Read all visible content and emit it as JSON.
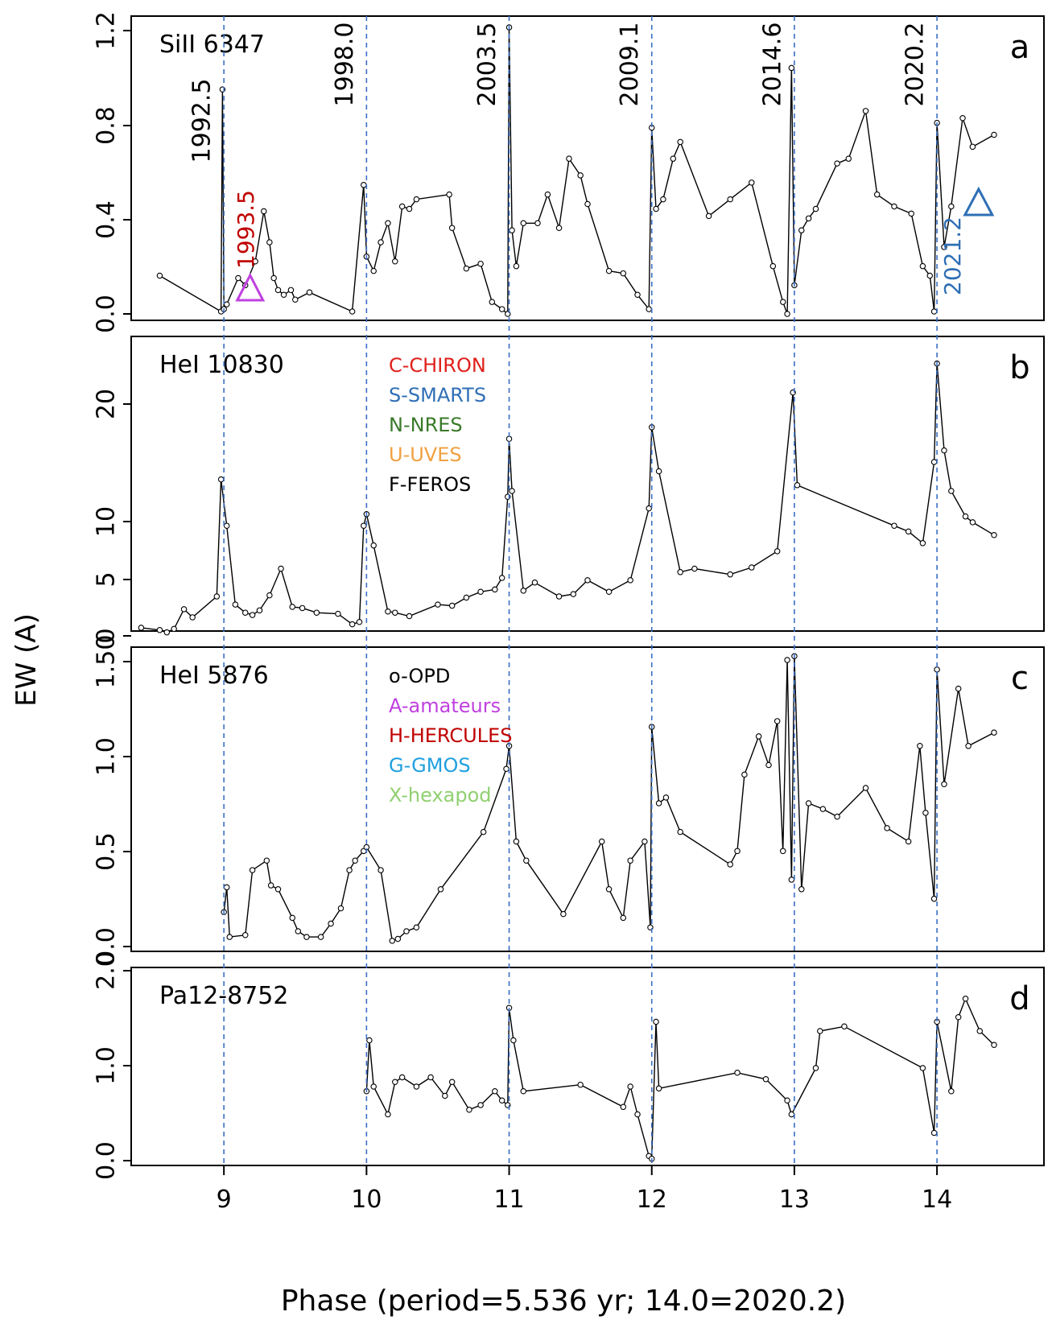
{
  "figure": {
    "ylabel": "EW (A)",
    "xlabel": "Phase (period=5.536 yr;  14.0=2020.2)",
    "epoch_lines": [
      9,
      10,
      11,
      12,
      13,
      14
    ],
    "epoch_labels": [
      "1992.5",
      "1998.0",
      "2003.5",
      "2009.1",
      "2014.6",
      "2020.2"
    ],
    "x_ticks": [
      9,
      10,
      11,
      12,
      13,
      14
    ],
    "colors": {
      "line": "#000000",
      "epoch_line": "#3a6fc4",
      "CHIRON": "#e0201b",
      "SMARTS": "#2f6fb5",
      "NRES": "#3a7a2a",
      "UVES": "#f0a040",
      "FEROS": "#000000",
      "OPD": "#000000",
      "amateurs": "#c040e0",
      "HERCULES": "#c00000",
      "GMOS": "#20a0e0",
      "hexapod": "#90d070",
      "triangle_a": "#c040e0",
      "triangle_b": "#2f6fb5"
    },
    "legend1": [
      {
        "label": "C-CHIRON",
        "color": "#e0201b"
      },
      {
        "label": "S-SMARTS",
        "color": "#2f6fb5"
      },
      {
        "label": "N-NRES",
        "color": "#3a7a2a"
      },
      {
        "label": "U-UVES",
        "color": "#f0a040"
      },
      {
        "label": "F-FEROS",
        "color": "#000000"
      }
    ],
    "legend2": [
      {
        "label": "o-OPD",
        "color": "#000000"
      },
      {
        "label": "A-amateurs",
        "color": "#c040e0"
      },
      {
        "label": "H-HERCULES",
        "color": "#c00000"
      },
      {
        "label": "G-GMOS",
        "color": "#20a0e0"
      },
      {
        "label": "X-hexapod",
        "color": "#90d070"
      }
    ],
    "annotations": [
      {
        "text": "1993.5",
        "color": "#c00000",
        "x": 9.15
      },
      {
        "text": "2021.2",
        "color": "#2f6fb5",
        "x": 14.1
      }
    ]
  },
  "chart_data": [
    {
      "type": "line",
      "title": "SiII 6347",
      "panel_letter": "a",
      "ylim": [
        0,
        1.2
      ],
      "yticks": [
        "0.0",
        "0.4",
        "0.8",
        "1.2"
      ],
      "x": [
        8.55,
        8.98,
        8.99,
        9.0,
        9.02,
        9.1,
        9.15,
        9.22,
        9.28,
        9.32,
        9.35,
        9.38,
        9.42,
        9.47,
        9.5,
        9.6,
        9.9,
        9.98,
        10.0,
        10.05,
        10.1,
        10.15,
        10.2,
        10.25,
        10.3,
        10.35,
        10.58,
        10.6,
        10.7,
        10.8,
        10.88,
        10.95,
        10.99,
        11.0,
        11.02,
        11.05,
        11.1,
        11.2,
        11.27,
        11.35,
        11.42,
        11.5,
        11.55,
        11.7,
        11.8,
        11.9,
        11.98,
        12.0,
        12.03,
        12.08,
        12.15,
        12.2,
        12.4,
        12.55,
        12.7,
        12.85,
        12.92,
        12.95,
        12.98,
        13.0,
        13.05,
        13.1,
        13.15,
        13.3,
        13.38,
        13.5,
        13.58,
        13.7,
        13.82,
        13.9,
        13.95,
        13.98,
        14.0,
        14.05,
        14.1,
        14.18,
        14.25,
        14.4
      ],
      "y": [
        0.16,
        0.01,
        0.94,
        0.02,
        0.04,
        0.15,
        0.12,
        0.22,
        0.43,
        0.3,
        0.15,
        0.1,
        0.08,
        0.1,
        0.06,
        0.09,
        0.01,
        0.54,
        0.24,
        0.18,
        0.3,
        0.38,
        0.22,
        0.45,
        0.44,
        0.48,
        0.5,
        0.36,
        0.19,
        0.21,
        0.05,
        0.02,
        0.0,
        1.2,
        0.35,
        0.2,
        0.38,
        0.38,
        0.5,
        0.36,
        0.65,
        0.58,
        0.46,
        0.18,
        0.17,
        0.08,
        0.02,
        0.78,
        0.44,
        0.48,
        0.65,
        0.72,
        0.41,
        0.48,
        0.55,
        0.2,
        0.05,
        0.0,
        1.03,
        0.12,
        0.35,
        0.4,
        0.44,
        0.63,
        0.65,
        0.85,
        0.5,
        0.45,
        0.42,
        0.2,
        0.16,
        0.01,
        0.8,
        0.28,
        0.45,
        0.82,
        0.7,
        0.75
      ]
    },
    {
      "type": "line",
      "title": "HeI 10830",
      "panel_letter": "b",
      "ylim": [
        0,
        25
      ],
      "yticks": [
        "0",
        "5",
        "10",
        "20"
      ],
      "x": [
        8.42,
        8.55,
        8.6,
        8.65,
        8.72,
        8.78,
        8.95,
        8.98,
        9.02,
        9.08,
        9.15,
        9.2,
        9.25,
        9.32,
        9.4,
        9.48,
        9.55,
        9.65,
        9.8,
        9.9,
        9.95,
        9.98,
        10.0,
        10.05,
        10.15,
        10.2,
        10.3,
        10.5,
        10.6,
        10.7,
        10.8,
        10.9,
        10.95,
        10.99,
        11.0,
        11.02,
        11.1,
        11.18,
        11.35,
        11.45,
        11.55,
        11.7,
        11.85,
        11.98,
        12.0,
        12.05,
        12.2,
        12.3,
        12.55,
        12.7,
        12.88,
        12.99,
        13.02,
        13.7,
        13.8,
        13.9,
        13.98,
        14.0,
        14.05,
        14.1,
        14.2,
        14.25,
        14.4
      ],
      "y": [
        0.7,
        0.5,
        0.3,
        0.6,
        2.3,
        1.6,
        3.4,
        13.5,
        9.5,
        2.7,
        2.0,
        1.8,
        2.2,
        3.5,
        5.8,
        2.5,
        2.4,
        2.0,
        1.9,
        1.0,
        1.2,
        9.5,
        10.5,
        7.8,
        2.1,
        2.0,
        1.7,
        2.7,
        2.6,
        3.3,
        3.8,
        4.0,
        5.0,
        12.0,
        17.0,
        12.5,
        3.9,
        4.6,
        3.4,
        3.6,
        4.8,
        3.8,
        4.8,
        11.0,
        18.0,
        14.2,
        5.5,
        5.8,
        5.3,
        5.9,
        7.3,
        21.0,
        13.0,
        9.5,
        9.0,
        8.0,
        15.0,
        23.5,
        16.0,
        12.5,
        10.3,
        9.8,
        8.7
      ]
    },
    {
      "type": "line",
      "title": "HeI 5876",
      "panel_letter": "c",
      "ylim": [
        0,
        1.5
      ],
      "yticks": [
        "0.0",
        "0.5",
        "1.0",
        "1.50"
      ],
      "x": [
        9.0,
        9.02,
        9.04,
        9.15,
        9.2,
        9.3,
        9.33,
        9.38,
        9.48,
        9.52,
        9.58,
        9.68,
        9.75,
        9.82,
        9.88,
        9.92,
        9.98,
        10.0,
        10.1,
        10.18,
        10.22,
        10.28,
        10.35,
        10.52,
        10.82,
        10.98,
        11.0,
        11.05,
        11.12,
        11.38,
        11.65,
        11.7,
        11.8,
        11.85,
        11.95,
        11.99,
        12.0,
        12.05,
        12.1,
        12.2,
        12.55,
        12.6,
        12.65,
        12.75,
        12.82,
        12.88,
        12.92,
        12.95,
        12.98,
        13.0,
        13.05,
        13.1,
        13.2,
        13.3,
        13.5,
        13.65,
        13.8,
        13.88,
        13.92,
        13.98,
        14.0,
        14.05,
        14.15,
        14.22,
        14.4
      ],
      "y": [
        0.18,
        0.31,
        0.05,
        0.06,
        0.4,
        0.45,
        0.32,
        0.3,
        0.15,
        0.08,
        0.05,
        0.05,
        0.12,
        0.2,
        0.4,
        0.45,
        0.5,
        0.52,
        0.4,
        0.03,
        0.04,
        0.08,
        0.1,
        0.3,
        0.6,
        0.93,
        1.05,
        0.55,
        0.45,
        0.17,
        0.55,
        0.3,
        0.15,
        0.45,
        0.55,
        0.1,
        1.15,
        0.75,
        0.78,
        0.6,
        0.43,
        0.5,
        0.9,
        1.1,
        0.95,
        1.18,
        0.5,
        1.5,
        0.35,
        1.52,
        0.3,
        0.75,
        0.72,
        0.68,
        0.83,
        0.62,
        0.55,
        1.05,
        0.7,
        0.25,
        1.45,
        0.85,
        1.35,
        1.05,
        1.12
      ]
    },
    {
      "type": "line",
      "title": "Pa12-8752",
      "panel_letter": "d",
      "ylim": [
        0,
        2.0
      ],
      "yticks": [
        "0.0",
        "1.0",
        "2.0"
      ],
      "x": [
        10.0,
        10.02,
        10.05,
        10.15,
        10.2,
        10.25,
        10.35,
        10.45,
        10.55,
        10.6,
        10.72,
        10.8,
        10.9,
        10.95,
        10.99,
        11.0,
        11.03,
        11.1,
        11.5,
        11.8,
        11.85,
        11.9,
        11.98,
        12.0,
        12.03,
        12.05,
        12.6,
        12.8,
        12.95,
        12.98,
        13.15,
        13.18,
        13.35,
        13.9,
        13.98,
        14.0,
        14.1,
        14.15,
        14.2,
        14.3,
        14.4
      ],
      "y": [
        0.75,
        1.3,
        0.8,
        0.5,
        0.85,
        0.9,
        0.8,
        0.9,
        0.7,
        0.85,
        0.55,
        0.6,
        0.75,
        0.65,
        0.6,
        1.65,
        1.3,
        0.75,
        0.82,
        0.58,
        0.8,
        0.5,
        0.05,
        0.02,
        1.5,
        0.78,
        0.95,
        0.88,
        0.65,
        0.5,
        1.0,
        1.4,
        1.45,
        1.0,
        0.3,
        1.5,
        0.75,
        1.55,
        1.75,
        1.4,
        1.25
      ]
    }
  ]
}
